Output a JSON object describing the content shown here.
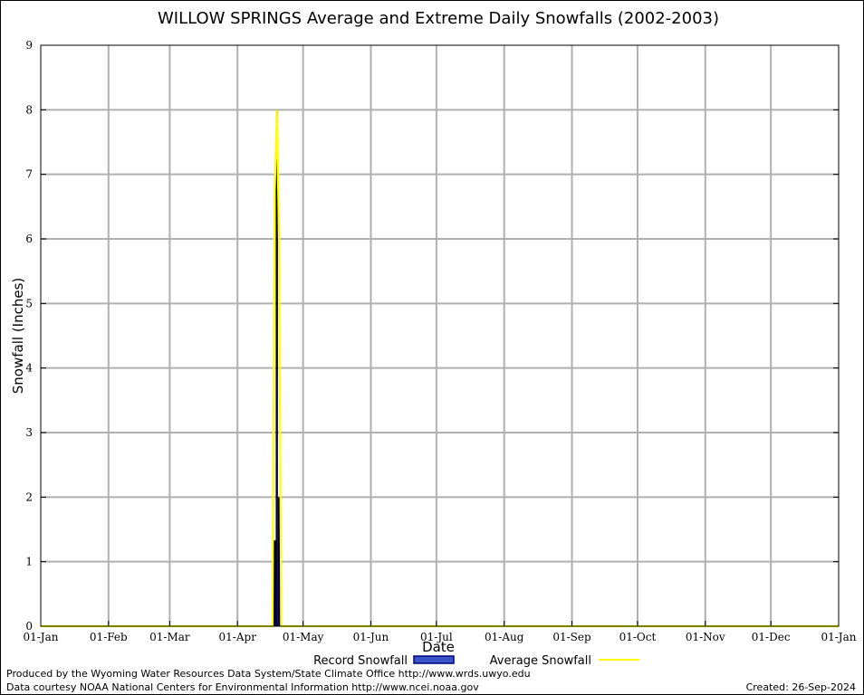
{
  "chart_data": {
    "type": "bar",
    "title": "WILLOW SPRINGS Average and Extreme Daily Snowfalls (2002-2003)",
    "xlabel": "Date",
    "ylabel": "Snowfall (Inches)",
    "ylim": [
      0,
      9
    ],
    "xlim": [
      "01-Jan",
      "01-Jan"
    ],
    "y_ticks": [
      "0",
      "1",
      "2",
      "3",
      "4",
      "5",
      "6",
      "7",
      "8",
      "9"
    ],
    "x_ticks": [
      "01-Jan",
      "01-Feb",
      "01-Mar",
      "01-Apr",
      "01-May",
      "01-Jun",
      "01-Jul",
      "01-Aug",
      "01-Sep",
      "01-Oct",
      "01-Nov",
      "01-Dec",
      "01-Jan"
    ],
    "grid": true,
    "legend_position": "bottom",
    "series": [
      {
        "name": "Record Snowfall",
        "kind": "bar",
        "color": "#000080",
        "points": [
          {
            "date": "2003-04-18",
            "value": 1.33
          },
          {
            "date": "2003-04-19",
            "value": 8.0
          },
          {
            "date": "2003-04-20",
            "value": 2.0
          }
        ]
      },
      {
        "name": "Average Snowfall",
        "kind": "line",
        "color": "#ffff00",
        "points": [
          {
            "date": "2003-04-17",
            "value": 0
          },
          {
            "date": "2003-04-18",
            "value": 6.67
          },
          {
            "date": "2003-04-19",
            "value": 8.0
          },
          {
            "date": "2003-04-20",
            "value": 6.0
          },
          {
            "date": "2003-04-21",
            "value": 0
          }
        ]
      }
    ]
  },
  "legend": {
    "record_label": "Record Snowfall",
    "average_label": "Average Snowfall"
  },
  "footer": {
    "produced_by": "Produced by the Wyoming Water Resources Data System/State Climate Office http://www.wrds.uwyo.edu",
    "data_courtesy": "Data courtesy NOAA National Centers for Environmental Information http://www.ncei.noaa.gov",
    "created": "Created: 26-Sep-2024"
  }
}
